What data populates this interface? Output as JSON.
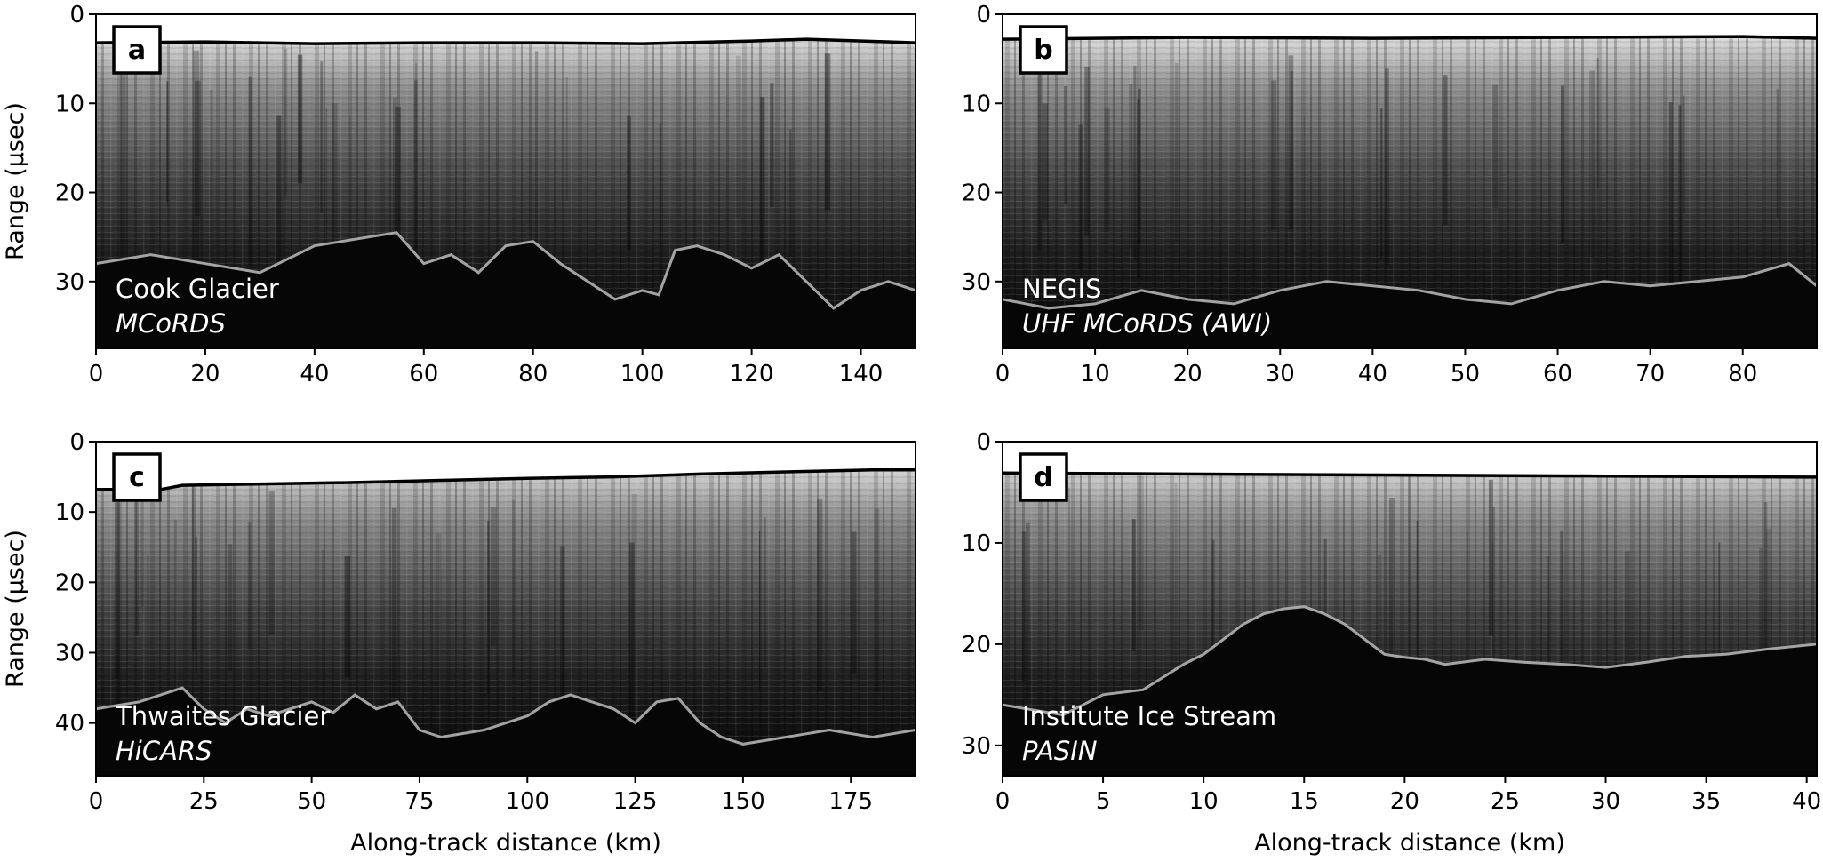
{
  "figure": {
    "y_axis_label": "Range (μsec)",
    "x_axis_label": "Along-track distance (km)"
  },
  "chart_data": [
    {
      "type": "heatmap",
      "panel_letter": "a",
      "location": "Cook Glacier",
      "instrument": "MCoRDS",
      "xlabel": "",
      "ylabel": "Range (μsec)",
      "xlim": [
        0,
        150
      ],
      "ylim": [
        37.5,
        0
      ],
      "xticks": [
        0,
        20,
        40,
        60,
        80,
        100,
        120,
        140
      ],
      "yticks": [
        0,
        10,
        20,
        30
      ],
      "surface": [
        [
          0,
          3.2
        ],
        [
          20,
          3.1
        ],
        [
          40,
          3.3
        ],
        [
          60,
          3.2
        ],
        [
          80,
          3.2
        ],
        [
          100,
          3.3
        ],
        [
          120,
          3.0
        ],
        [
          130,
          2.8
        ],
        [
          150,
          3.2
        ]
      ],
      "bed": [
        [
          0,
          28
        ],
        [
          10,
          27
        ],
        [
          20,
          28
        ],
        [
          30,
          29
        ],
        [
          40,
          26
        ],
        [
          50,
          25
        ],
        [
          55,
          24.5
        ],
        [
          60,
          28
        ],
        [
          65,
          27
        ],
        [
          70,
          29
        ],
        [
          75,
          26
        ],
        [
          80,
          25.5
        ],
        [
          85,
          28
        ],
        [
          90,
          30
        ],
        [
          95,
          32
        ],
        [
          100,
          31
        ],
        [
          103,
          31.5
        ],
        [
          106,
          26.5
        ],
        [
          110,
          26
        ],
        [
          115,
          27
        ],
        [
          120,
          28.5
        ],
        [
          125,
          27
        ],
        [
          130,
          30
        ],
        [
          135,
          33
        ],
        [
          140,
          31
        ],
        [
          145,
          30
        ],
        [
          150,
          31
        ]
      ]
    },
    {
      "type": "heatmap",
      "panel_letter": "b",
      "location": "NEGIS",
      "instrument": "UHF MCoRDS (AWI)",
      "xlabel": "",
      "ylabel": "",
      "xlim": [
        0,
        88
      ],
      "ylim": [
        37.5,
        0
      ],
      "xticks": [
        0,
        10,
        20,
        30,
        40,
        50,
        60,
        70,
        80
      ],
      "yticks": [
        0,
        10,
        20,
        30
      ],
      "surface": [
        [
          0,
          2.8
        ],
        [
          20,
          2.6
        ],
        [
          40,
          2.7
        ],
        [
          60,
          2.6
        ],
        [
          80,
          2.5
        ],
        [
          88,
          2.7
        ]
      ],
      "bed": [
        [
          0,
          32
        ],
        [
          5,
          33
        ],
        [
          10,
          32.5
        ],
        [
          15,
          31
        ],
        [
          20,
          32
        ],
        [
          25,
          32.5
        ],
        [
          30,
          31
        ],
        [
          35,
          30
        ],
        [
          40,
          30.5
        ],
        [
          45,
          31
        ],
        [
          50,
          32
        ],
        [
          55,
          32.5
        ],
        [
          60,
          31
        ],
        [
          65,
          30
        ],
        [
          70,
          30.5
        ],
        [
          75,
          30
        ],
        [
          80,
          29.5
        ],
        [
          85,
          28
        ],
        [
          88,
          30.5
        ]
      ]
    },
    {
      "type": "heatmap",
      "panel_letter": "c",
      "location": "Thwaites Glacier",
      "instrument": "HiCARS",
      "xlabel": "Along-track distance (km)",
      "ylabel": "Range (μsec)",
      "xlim": [
        0,
        190
      ],
      "ylim": [
        47.5,
        0
      ],
      "xticks": [
        0,
        25,
        50,
        75,
        100,
        125,
        150,
        175
      ],
      "yticks": [
        0,
        10,
        20,
        30,
        40
      ],
      "surface": [
        [
          0,
          6.8
        ],
        [
          15,
          6.8
        ],
        [
          20,
          6.2
        ],
        [
          40,
          6.0
        ],
        [
          60,
          5.8
        ],
        [
          80,
          5.5
        ],
        [
          100,
          5.2
        ],
        [
          120,
          5.0
        ],
        [
          140,
          4.6
        ],
        [
          160,
          4.3
        ],
        [
          180,
          4.0
        ],
        [
          190,
          4.0
        ]
      ],
      "bed": [
        [
          0,
          38
        ],
        [
          10,
          37
        ],
        [
          20,
          35
        ],
        [
          25,
          38
        ],
        [
          30,
          40
        ],
        [
          35,
          38
        ],
        [
          40,
          39
        ],
        [
          50,
          37
        ],
        [
          55,
          38.5
        ],
        [
          60,
          36
        ],
        [
          65,
          38
        ],
        [
          70,
          37
        ],
        [
          75,
          41
        ],
        [
          80,
          42
        ],
        [
          90,
          41
        ],
        [
          100,
          39
        ],
        [
          105,
          37
        ],
        [
          110,
          36
        ],
        [
          115,
          37
        ],
        [
          120,
          38
        ],
        [
          125,
          40
        ],
        [
          130,
          37
        ],
        [
          135,
          36.5
        ],
        [
          140,
          40
        ],
        [
          145,
          42
        ],
        [
          150,
          43
        ],
        [
          160,
          42
        ],
        [
          170,
          41
        ],
        [
          180,
          42
        ],
        [
          190,
          41
        ]
      ]
    },
    {
      "type": "heatmap",
      "panel_letter": "d",
      "location": "Institute Ice Stream",
      "instrument": "PASIN",
      "xlabel": "Along-track distance (km)",
      "ylabel": "",
      "xlim": [
        0,
        40.5
      ],
      "ylim": [
        33,
        0
      ],
      "xticks": [
        0,
        5,
        10,
        15,
        20,
        25,
        30,
        35,
        40
      ],
      "yticks": [
        0,
        10,
        20,
        30
      ],
      "surface": [
        [
          0,
          3.1
        ],
        [
          10,
          3.2
        ],
        [
          20,
          3.3
        ],
        [
          30,
          3.4
        ],
        [
          40.5,
          3.5
        ]
      ],
      "bed": [
        [
          0,
          26
        ],
        [
          3,
          27
        ],
        [
          5,
          25
        ],
        [
          7,
          24.5
        ],
        [
          9,
          22
        ],
        [
          10,
          21
        ],
        [
          11,
          19.5
        ],
        [
          12,
          18
        ],
        [
          13,
          17
        ],
        [
          14,
          16.5
        ],
        [
          15,
          16.3
        ],
        [
          16,
          17
        ],
        [
          17,
          18
        ],
        [
          18,
          19.5
        ],
        [
          19,
          21
        ],
        [
          20,
          21.3
        ],
        [
          21,
          21.5
        ],
        [
          22,
          22
        ],
        [
          24,
          21.5
        ],
        [
          26,
          21.8
        ],
        [
          28,
          22
        ],
        [
          30,
          22.3
        ],
        [
          32,
          21.8
        ],
        [
          34,
          21.2
        ],
        [
          36,
          21
        ],
        [
          38,
          20.5
        ],
        [
          40.5,
          20
        ]
      ]
    }
  ]
}
